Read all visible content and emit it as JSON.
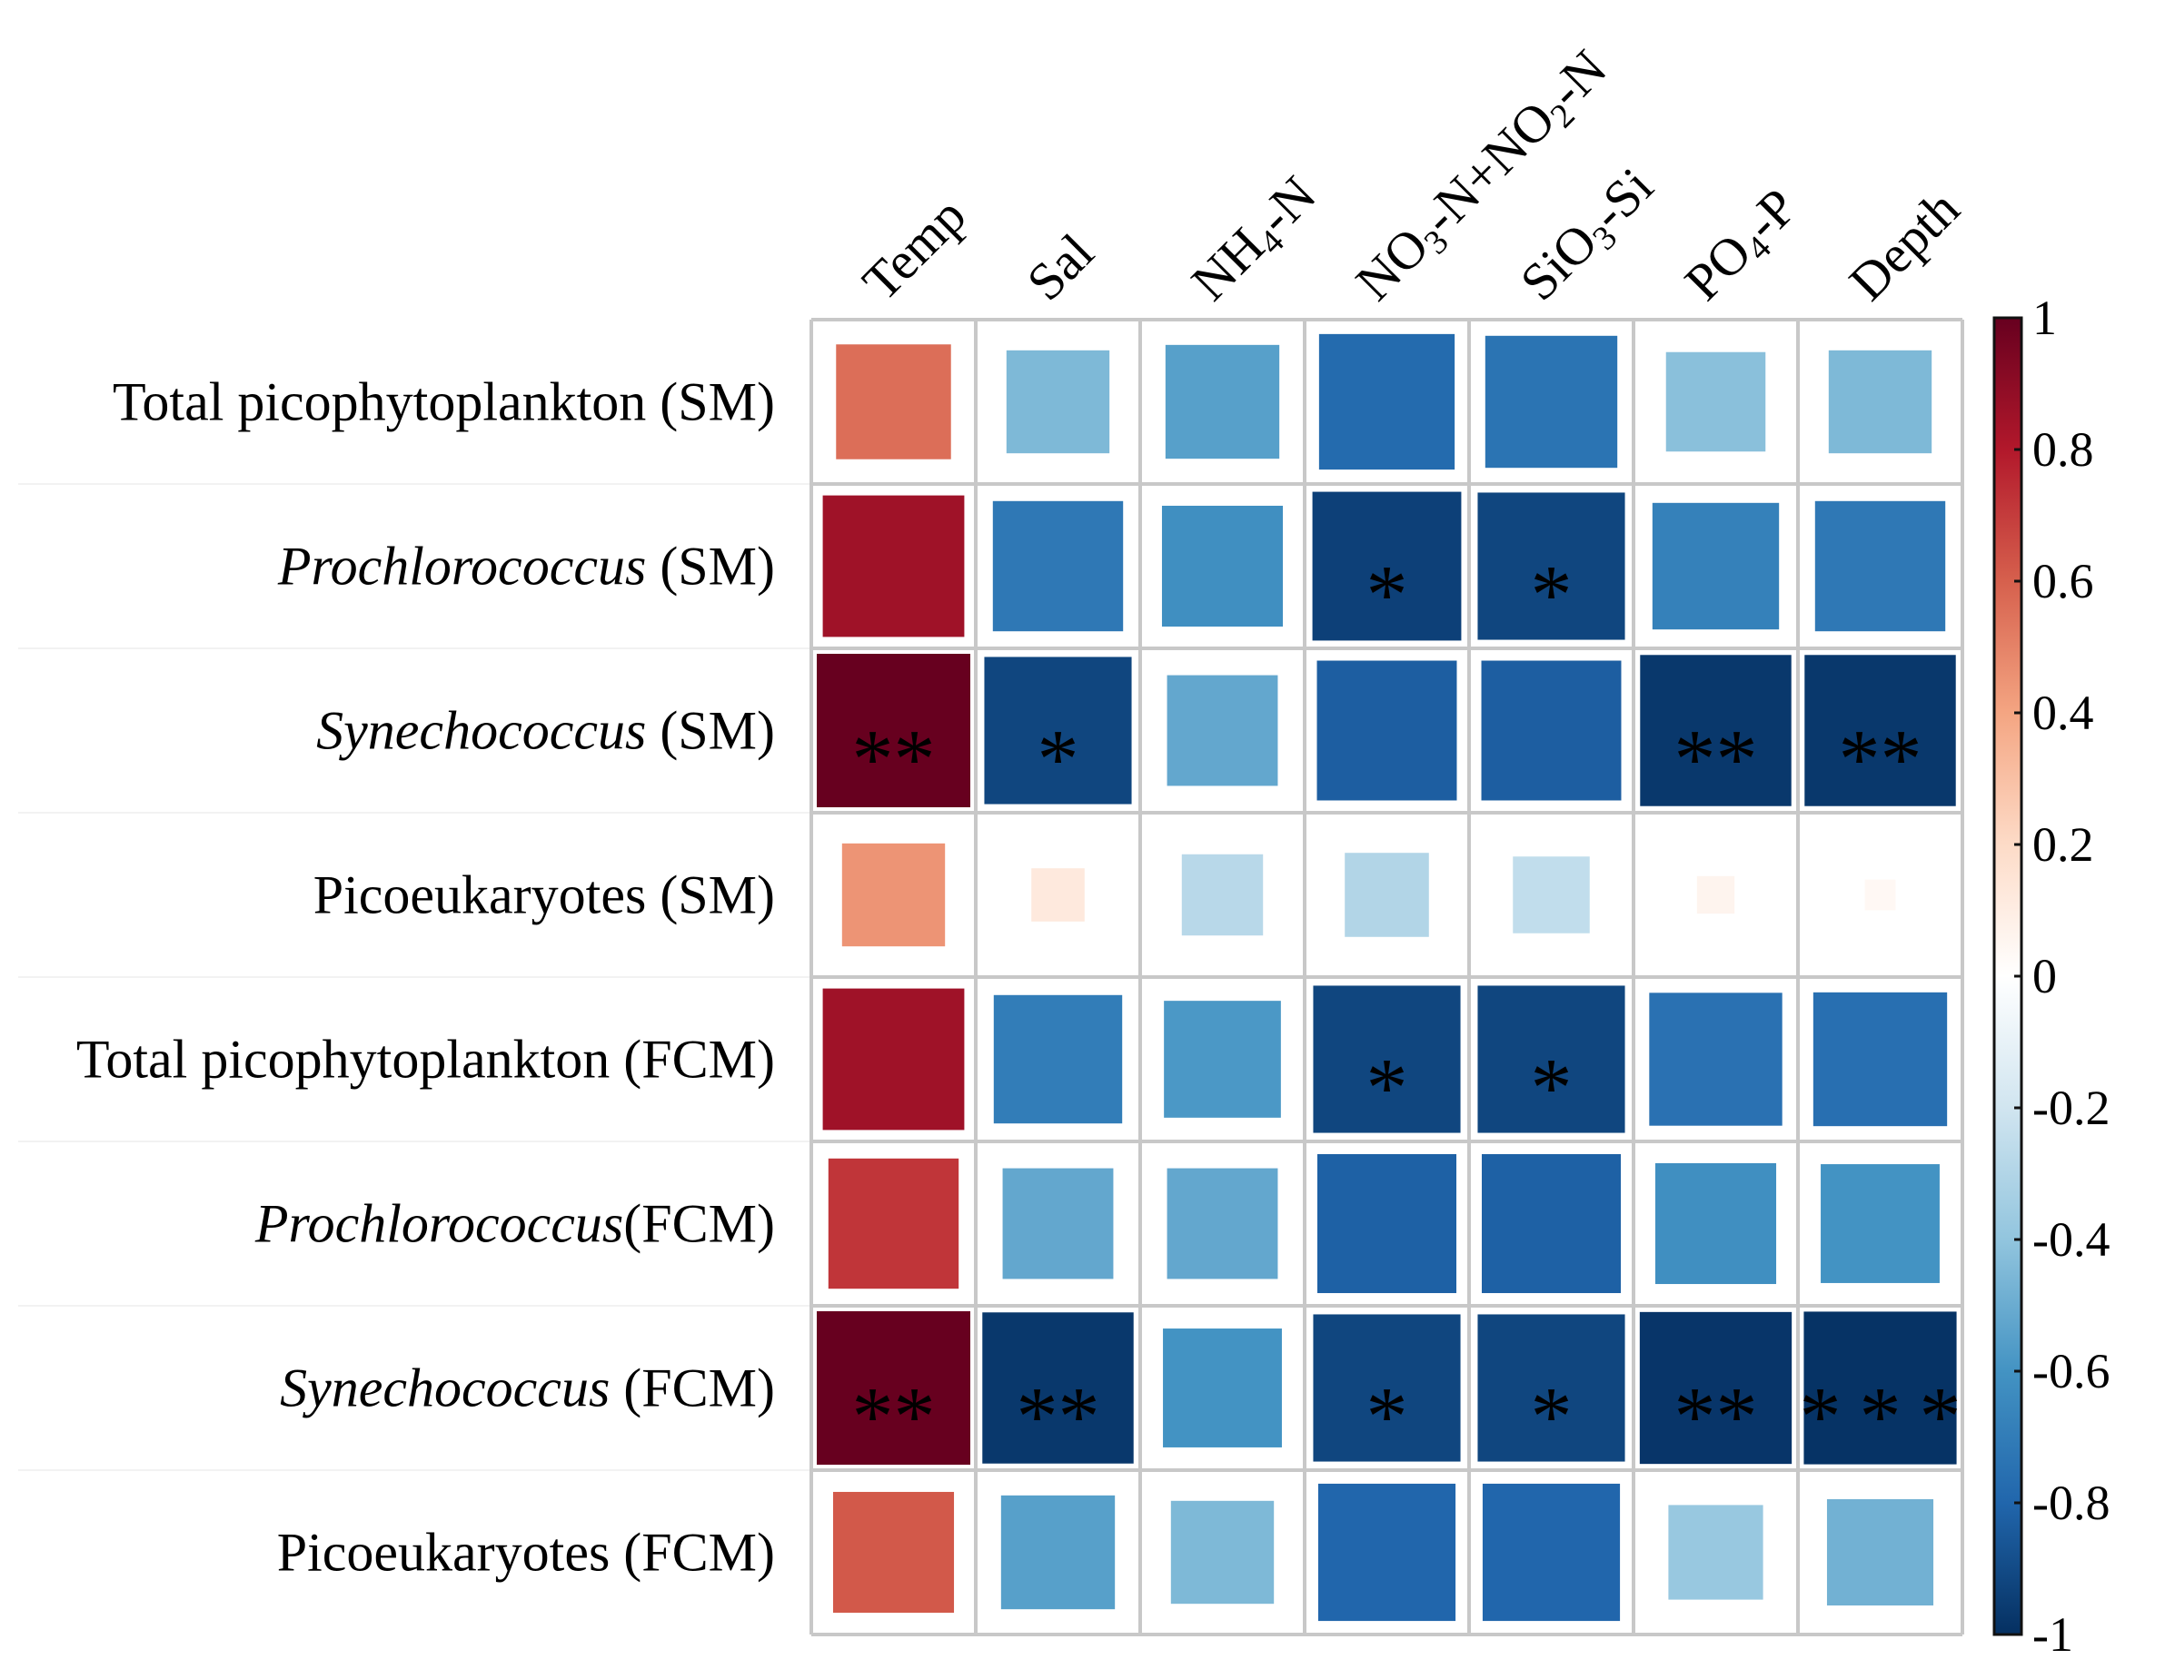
{
  "chart_data": {
    "type": "heatmap",
    "title": "",
    "value_range": [
      -1,
      1
    ],
    "rows": [
      {
        "name": "Total picophytoplankton (SM)",
        "italic": "",
        "rest": "Total picophytoplankton (SM)"
      },
      {
        "name": "Prochlorococcus (SM)",
        "italic": "Prochlorococcus",
        "rest": " (SM)"
      },
      {
        "name": "Synechococcus (SM)",
        "italic": "Synechococcus",
        "rest": " (SM)"
      },
      {
        "name": "Picoeukaryotes (SM)",
        "italic": "",
        "rest": "Picoeukaryotes (SM)"
      },
      {
        "name": "Total picophytoplankton (FCM)",
        "italic": "",
        "rest": "Total picophytoplankton (FCM)"
      },
      {
        "name": "Prochlorococcus(FCM)",
        "italic": "Prochlorococcus",
        "rest": "(FCM)"
      },
      {
        "name": "Synechococcus (FCM)",
        "italic": "Synechococcus",
        "rest": " (FCM)"
      },
      {
        "name": "Picoeukaryotes (FCM)",
        "italic": "",
        "rest": "Picoeukaryotes (FCM)"
      }
    ],
    "columns": [
      {
        "name": "Temp",
        "parts": [
          [
            "Temp",
            ""
          ]
        ]
      },
      {
        "name": "Sal",
        "parts": [
          [
            "Sal",
            ""
          ]
        ]
      },
      {
        "name": "NH4-N",
        "parts": [
          [
            "NH",
            ""
          ],
          [
            "4",
            "sub"
          ],
          [
            "-N",
            ""
          ]
        ]
      },
      {
        "name": "NO3-N+NO2-N",
        "parts": [
          [
            "NO",
            ""
          ],
          [
            "3",
            "sub"
          ],
          [
            "-N+NO",
            ""
          ],
          [
            "2",
            "sub"
          ],
          [
            "-N",
            ""
          ]
        ]
      },
      {
        "name": "SiO3-Si",
        "parts": [
          [
            "SiO",
            ""
          ],
          [
            "3",
            "sub"
          ],
          [
            "-Si",
            ""
          ]
        ]
      },
      {
        "name": "PO4-P",
        "parts": [
          [
            "PO",
            ""
          ],
          [
            "4",
            "sub"
          ],
          [
            "-P",
            ""
          ]
        ]
      },
      {
        "name": "Depth",
        "parts": [
          [
            "Depth",
            ""
          ]
        ]
      }
    ],
    "values": [
      [
        0.56,
        -0.45,
        -0.55,
        -0.78,
        -0.74,
        -0.42,
        -0.45
      ],
      [
        0.85,
        -0.72,
        -0.62,
        -0.94,
        -0.92,
        -0.68,
        -0.72
      ],
      [
        1.0,
        -0.92,
        -0.52,
        -0.83,
        -0.83,
        -0.97,
        -0.97
      ],
      [
        0.45,
        0.12,
        -0.28,
        -0.3,
        -0.25,
        0.06,
        0.04
      ],
      [
        0.85,
        -0.7,
        -0.58,
        -0.92,
        -0.92,
        -0.75,
        -0.76
      ],
      [
        0.72,
        -0.52,
        -0.52,
        -0.82,
        -0.82,
        -0.62,
        -0.6
      ],
      [
        1.0,
        -0.97,
        -0.6,
        -0.92,
        -0.92,
        -0.98,
        -0.99
      ],
      [
        0.62,
        -0.55,
        -0.45,
        -0.8,
        -0.8,
        -0.38,
        -0.48
      ]
    ],
    "significance": [
      [
        "",
        "",
        "",
        "",
        "",
        "",
        ""
      ],
      [
        "",
        "",
        "",
        "*",
        "*",
        "",
        ""
      ],
      [
        "**",
        "*",
        "",
        "",
        "",
        "**",
        "**"
      ],
      [
        "",
        "",
        "",
        "",
        "",
        "",
        ""
      ],
      [
        "",
        "",
        "",
        "*",
        "*",
        "",
        ""
      ],
      [
        "",
        "",
        "",
        "",
        "",
        "",
        ""
      ],
      [
        "**",
        "**",
        "",
        "*",
        "*",
        "**",
        "***"
      ],
      [
        "",
        "",
        "",
        "",
        "",
        "",
        ""
      ]
    ],
    "colorbar": {
      "ticks": [
        "1",
        "0.8",
        "0.6",
        "0.4",
        "0.2",
        "0",
        "-0.2",
        "-0.4",
        "-0.6",
        "-0.8",
        "-1"
      ],
      "tick_values": [
        1,
        0.8,
        0.6,
        0.4,
        0.2,
        0,
        -0.2,
        -0.4,
        -0.6,
        -0.8,
        -1
      ],
      "colors": [
        "#053061",
        "#2166ac",
        "#4393c3",
        "#92c5de",
        "#d1e5f0",
        "#ffffff",
        "#fddbc7",
        "#f4a582",
        "#d6604d",
        "#b2182b",
        "#67001f"
      ]
    }
  }
}
